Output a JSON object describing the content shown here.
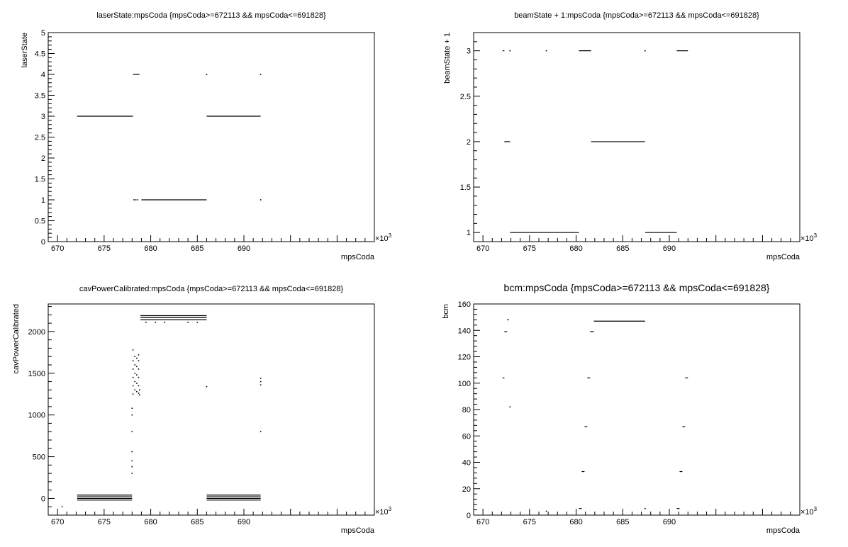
{
  "chart_data": [
    {
      "type": "scatter",
      "title": "laserState:mpsCoda {mpsCoda>=672113 && mpsCoda<=691828}",
      "xlabel": "mpsCoda",
      "ylabel": "laserState",
      "exponent_label": "×10",
      "exponent_power": "3",
      "xlim": [
        669,
        704
      ],
      "ylim": [
        0,
        5
      ],
      "xticks": [
        670,
        675,
        680,
        685,
        690
      ],
      "yticks": [
        0,
        0.5,
        1,
        1.5,
        2,
        2.5,
        3,
        3.5,
        4,
        4.5,
        5
      ],
      "segments": [
        {
          "x0": 672.1,
          "x1": 678.1,
          "y": 3
        },
        {
          "x0": 678.1,
          "x1": 678.8,
          "y": 4
        },
        {
          "x0": 679.0,
          "x1": 686.0,
          "y": 1
        },
        {
          "x0": 686.0,
          "x1": 691.8,
          "y": 3
        }
      ],
      "points": [
        {
          "x": 678.2,
          "y": 1
        },
        {
          "x": 678.4,
          "y": 1
        },
        {
          "x": 678.6,
          "y": 1
        },
        {
          "x": 686.0,
          "y": 4
        },
        {
          "x": 691.8,
          "y": 4
        },
        {
          "x": 691.8,
          "y": 1
        }
      ]
    },
    {
      "type": "scatter",
      "title": "beamState + 1:mpsCoda {mpsCoda>=672113 && mpsCoda<=691828}",
      "xlabel": "mpsCoda",
      "ylabel": "beamState + 1",
      "exponent_label": "×10",
      "exponent_power": "3",
      "xlim": [
        669,
        704
      ],
      "ylim": [
        0.9,
        3.2
      ],
      "xticks": [
        670,
        675,
        680,
        685,
        690
      ],
      "yticks": [
        1,
        1.5,
        2,
        2.5,
        3
      ],
      "segments": [
        {
          "x0": 672.1,
          "x1": 672.3,
          "y": 3
        },
        {
          "x0": 672.3,
          "x1": 672.9,
          "y": 2
        },
        {
          "x0": 672.9,
          "x1": 680.3,
          "y": 1
        },
        {
          "x0": 680.3,
          "x1": 681.6,
          "y": 3
        },
        {
          "x0": 681.6,
          "x1": 687.4,
          "y": 2
        },
        {
          "x0": 687.4,
          "x1": 690.8,
          "y": 1
        },
        {
          "x0": 690.8,
          "x1": 692.0,
          "y": 3
        }
      ],
      "points": [
        {
          "x": 672.9,
          "y": 3
        },
        {
          "x": 676.8,
          "y": 3
        },
        {
          "x": 687.4,
          "y": 3
        }
      ]
    },
    {
      "type": "scatter",
      "title": "cavPowerCalibrated:mpsCoda {mpsCoda>=672113 && mpsCoda<=691828}",
      "xlabel": "mpsCoda",
      "ylabel": "cavPowerCalibrated",
      "exponent_label": "×10",
      "exponent_power": "3",
      "xlim": [
        669,
        704
      ],
      "ylim": [
        -200,
        2330
      ],
      "xticks": [
        670,
        675,
        680,
        685,
        690
      ],
      "yticks": [
        0,
        500,
        1000,
        1500,
        2000
      ],
      "segments": [
        {
          "x0": 672.1,
          "x1": 678.0,
          "y": 40
        },
        {
          "x0": 672.1,
          "x1": 678.0,
          "y": 20
        },
        {
          "x0": 672.1,
          "x1": 678.0,
          "y": 0
        },
        {
          "x0": 672.1,
          "x1": 678.0,
          "y": -20
        },
        {
          "x0": 678.9,
          "x1": 686.0,
          "y": 2190
        },
        {
          "x0": 678.9,
          "x1": 686.0,
          "y": 2165
        },
        {
          "x0": 678.9,
          "x1": 686.0,
          "y": 2140
        },
        {
          "x0": 686.0,
          "x1": 691.8,
          "y": 40
        },
        {
          "x0": 686.0,
          "x1": 691.8,
          "y": 20
        },
        {
          "x0": 686.0,
          "x1": 691.8,
          "y": 0
        },
        {
          "x0": 686.0,
          "x1": 691.8,
          "y": -20
        }
      ],
      "points": [
        {
          "x": 678.0,
          "y": 300
        },
        {
          "x": 678.0,
          "y": 380
        },
        {
          "x": 678.0,
          "y": 450
        },
        {
          "x": 678.0,
          "y": 560
        },
        {
          "x": 678.0,
          "y": 800
        },
        {
          "x": 678.0,
          "y": 1000
        },
        {
          "x": 678.0,
          "y": 1080
        },
        {
          "x": 678.1,
          "y": 1250
        },
        {
          "x": 678.1,
          "y": 1350
        },
        {
          "x": 678.1,
          "y": 1450
        },
        {
          "x": 678.1,
          "y": 1550
        },
        {
          "x": 678.1,
          "y": 1650
        },
        {
          "x": 678.1,
          "y": 1780
        },
        {
          "x": 678.3,
          "y": 1300
        },
        {
          "x": 678.3,
          "y": 1400
        },
        {
          "x": 678.3,
          "y": 1500
        },
        {
          "x": 678.3,
          "y": 1600
        },
        {
          "x": 678.3,
          "y": 1700
        },
        {
          "x": 678.5,
          "y": 1280
        },
        {
          "x": 678.5,
          "y": 1380
        },
        {
          "x": 678.5,
          "y": 1480
        },
        {
          "x": 678.5,
          "y": 1580
        },
        {
          "x": 678.5,
          "y": 1680
        },
        {
          "x": 678.7,
          "y": 1260
        },
        {
          "x": 678.7,
          "y": 1350
        },
        {
          "x": 678.7,
          "y": 1450
        },
        {
          "x": 678.7,
          "y": 1550
        },
        {
          "x": 678.7,
          "y": 1650
        },
        {
          "x": 678.7,
          "y": 1720
        },
        {
          "x": 678.8,
          "y": 1240
        },
        {
          "x": 678.8,
          "y": 1300
        },
        {
          "x": 679.5,
          "y": 2110
        },
        {
          "x": 680.5,
          "y": 2110
        },
        {
          "x": 681.5,
          "y": 2110
        },
        {
          "x": 684.0,
          "y": 2110
        },
        {
          "x": 685.0,
          "y": 2110
        },
        {
          "x": 686.0,
          "y": 1340
        },
        {
          "x": 691.8,
          "y": 1360
        },
        {
          "x": 691.8,
          "y": 1400
        },
        {
          "x": 691.8,
          "y": 1440
        },
        {
          "x": 691.8,
          "y": 800
        },
        {
          "x": 670.5,
          "y": -100
        }
      ]
    },
    {
      "type": "scatter",
      "title": "bcm:mpsCoda {mpsCoda>=672113 && mpsCoda<=691828}",
      "xlabel": "mpsCoda",
      "ylabel": "bcm",
      "exponent_label": "×10",
      "exponent_power": "3",
      "xlim": [
        669,
        704
      ],
      "ylim": [
        0,
        160
      ],
      "xticks": [
        670,
        675,
        680,
        685,
        690
      ],
      "yticks": [
        0,
        20,
        40,
        60,
        80,
        100,
        120,
        140,
        160
      ],
      "segments": [
        {
          "x0": 672.1,
          "x1": 672.3,
          "y": 104
        },
        {
          "x0": 672.3,
          "x1": 672.6,
          "y": 139
        },
        {
          "x0": 672.6,
          "x1": 672.8,
          "y": 148
        },
        {
          "x0": 680.3,
          "x1": 680.6,
          "y": 5
        },
        {
          "x0": 680.6,
          "x1": 680.9,
          "y": 33
        },
        {
          "x0": 680.9,
          "x1": 681.2,
          "y": 67
        },
        {
          "x0": 681.2,
          "x1": 681.5,
          "y": 104
        },
        {
          "x0": 681.5,
          "x1": 681.9,
          "y": 139
        },
        {
          "x0": 681.9,
          "x1": 687.4,
          "y": 147
        },
        {
          "x0": 690.8,
          "x1": 691.1,
          "y": 5
        },
        {
          "x0": 691.1,
          "x1": 691.4,
          "y": 33
        },
        {
          "x0": 691.4,
          "x1": 691.7,
          "y": 67
        },
        {
          "x0": 691.7,
          "x1": 692.0,
          "y": 104
        }
      ],
      "points": [
        {
          "x": 672.9,
          "y": 82
        },
        {
          "x": 676.8,
          "y": 3
        },
        {
          "x": 687.4,
          "y": 5
        }
      ]
    }
  ]
}
